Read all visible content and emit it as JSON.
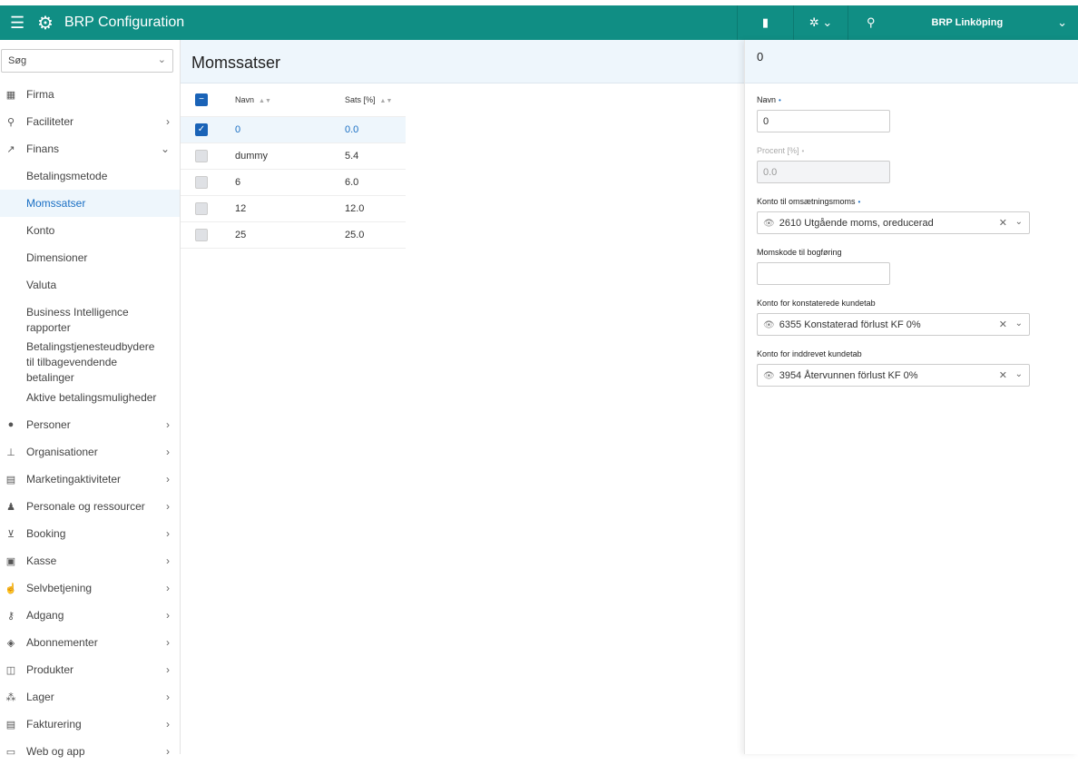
{
  "header": {
    "title": "BRP Configuration",
    "location": "BRP Linköping"
  },
  "sidebar": {
    "search_placeholder": "Søg",
    "items": [
      {
        "label": "Firma",
        "icon": "building-icon",
        "arrow": ""
      },
      {
        "label": "Faciliteter",
        "icon": "map-pin-icon",
        "arrow": "›"
      },
      {
        "label": "Finans",
        "icon": "trend-icon",
        "arrow": "⌄"
      },
      {
        "label": "Betalingsmetode",
        "sub": true
      },
      {
        "label": "Momssatser",
        "sub": true,
        "selected": true
      },
      {
        "label": "Konto",
        "sub": true
      },
      {
        "label": "Dimensioner",
        "sub": true
      },
      {
        "label": "Valuta",
        "sub": true
      },
      {
        "label": "Business Intelligence rapporter",
        "sub": true,
        "two": true
      },
      {
        "label": "Betalingstjenesteudbydere til tilbagevendende betalinger",
        "sub": true,
        "two": true
      },
      {
        "label": "Aktive betalingsmuligheder",
        "sub": true
      },
      {
        "label": "Personer",
        "icon": "person-icon",
        "arrow": "›"
      },
      {
        "label": "Organisationer",
        "icon": "org-chart-icon",
        "arrow": "›"
      },
      {
        "label": "Marketingaktiviteter",
        "icon": "calendar-icon",
        "arrow": "›"
      },
      {
        "label": "Personale og ressourcer",
        "icon": "staff-icon",
        "arrow": "›"
      },
      {
        "label": "Booking",
        "icon": "cart-icon",
        "arrow": "›"
      },
      {
        "label": "Kasse",
        "icon": "cash-register-icon",
        "arrow": "›"
      },
      {
        "label": "Selvbetjening",
        "icon": "touch-icon",
        "arrow": "›"
      },
      {
        "label": "Adgang",
        "icon": "key-icon",
        "arrow": "›"
      },
      {
        "label": "Abonnementer",
        "icon": "shield-icon",
        "arrow": "›"
      },
      {
        "label": "Produkter",
        "icon": "box-icon",
        "arrow": "›"
      },
      {
        "label": "Lager",
        "icon": "boxes-icon",
        "arrow": "›"
      },
      {
        "label": "Fakturering",
        "icon": "invoice-icon",
        "arrow": "›"
      },
      {
        "label": "Web og app",
        "icon": "window-icon",
        "arrow": "›"
      }
    ]
  },
  "main": {
    "title": "Momssatser",
    "columns": [
      "Navn",
      "Sats [%]"
    ],
    "rows": [
      {
        "name": "0",
        "rate": "0.0",
        "checked": true
      },
      {
        "name": "dummy",
        "rate": "5.4"
      },
      {
        "name": "6",
        "rate": "6.0"
      },
      {
        "name": "12",
        "rate": "12.0"
      },
      {
        "name": "25",
        "rate": "25.0"
      }
    ]
  },
  "panel": {
    "title": "0",
    "navn_label": "Navn",
    "navn_value": "0",
    "procent_label": "Procent [%]",
    "procent_value": "0.0",
    "konto_oms_label": "Konto til omsætningsmoms",
    "konto_oms_value": "2610 Utgående moms, oreducerad",
    "momskode_label": "Momskode til bogføring",
    "momskode_value": "",
    "konto_konst_label": "Konto for konstaterede kundetab",
    "konto_konst_value": "6355 Konstaterad förlust KF 0%",
    "konto_inddr_label": "Konto for inddrevet kundetab",
    "konto_inddr_value": "3954 Återvunnen förlust KF 0%"
  },
  "colors": {
    "header": "#108e84",
    "accent": "#1a6fc4"
  }
}
